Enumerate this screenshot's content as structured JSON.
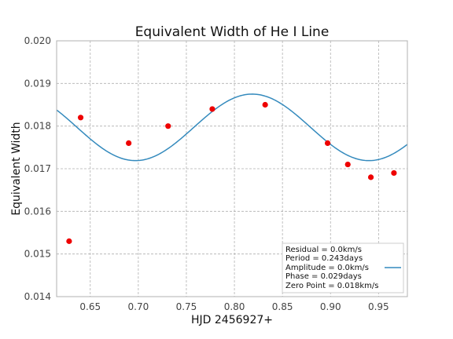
{
  "chart_data": {
    "type": "scatter",
    "title": "Equivalent Width of He I Line",
    "xlabel": "HJD 2456927+",
    "ylabel": "Equivalent Width",
    "xlim": [
      0.615,
      0.98
    ],
    "ylim": [
      0.014,
      0.02
    ],
    "grid": true,
    "legend_position": "lower-right",
    "xticks": [
      {
        "value": 0.65,
        "label": "0.65"
      },
      {
        "value": 0.7,
        "label": "0.70"
      },
      {
        "value": 0.75,
        "label": "0.75"
      },
      {
        "value": 0.8,
        "label": "0.80"
      },
      {
        "value": 0.85,
        "label": "0.85"
      },
      {
        "value": 0.9,
        "label": "0.90"
      },
      {
        "value": 0.95,
        "label": "0.95"
      }
    ],
    "yticks": [
      {
        "value": 0.014,
        "label": "0.014"
      },
      {
        "value": 0.015,
        "label": "0.015"
      },
      {
        "value": 0.016,
        "label": "0.016"
      },
      {
        "value": 0.017,
        "label": "0.017"
      },
      {
        "value": 0.018,
        "label": "0.018"
      },
      {
        "value": 0.019,
        "label": "0.019"
      },
      {
        "value": 0.02,
        "label": "0.020"
      }
    ],
    "points": {
      "color": "#ee0000",
      "x": [
        0.628,
        0.64,
        0.69,
        0.731,
        0.777,
        0.832,
        0.897,
        0.918,
        0.942,
        0.966
      ],
      "y": [
        0.0153,
        0.0182,
        0.0176,
        0.018,
        0.0184,
        0.0185,
        0.0176,
        0.0171,
        0.0168,
        0.0169
      ]
    },
    "fit": {
      "color": "#348abd",
      "period": 0.243,
      "zero_point": 0.01797,
      "amplitude": 0.00078,
      "peak_x": 0.8185
    },
    "legend": {
      "lines": [
        "Residual = 0.0km/s",
        "Period = 0.243days",
        "Amplitude = 0.0km/s",
        "Phase = 0.029days",
        "Zero Point = 0.018km/s"
      ]
    }
  }
}
